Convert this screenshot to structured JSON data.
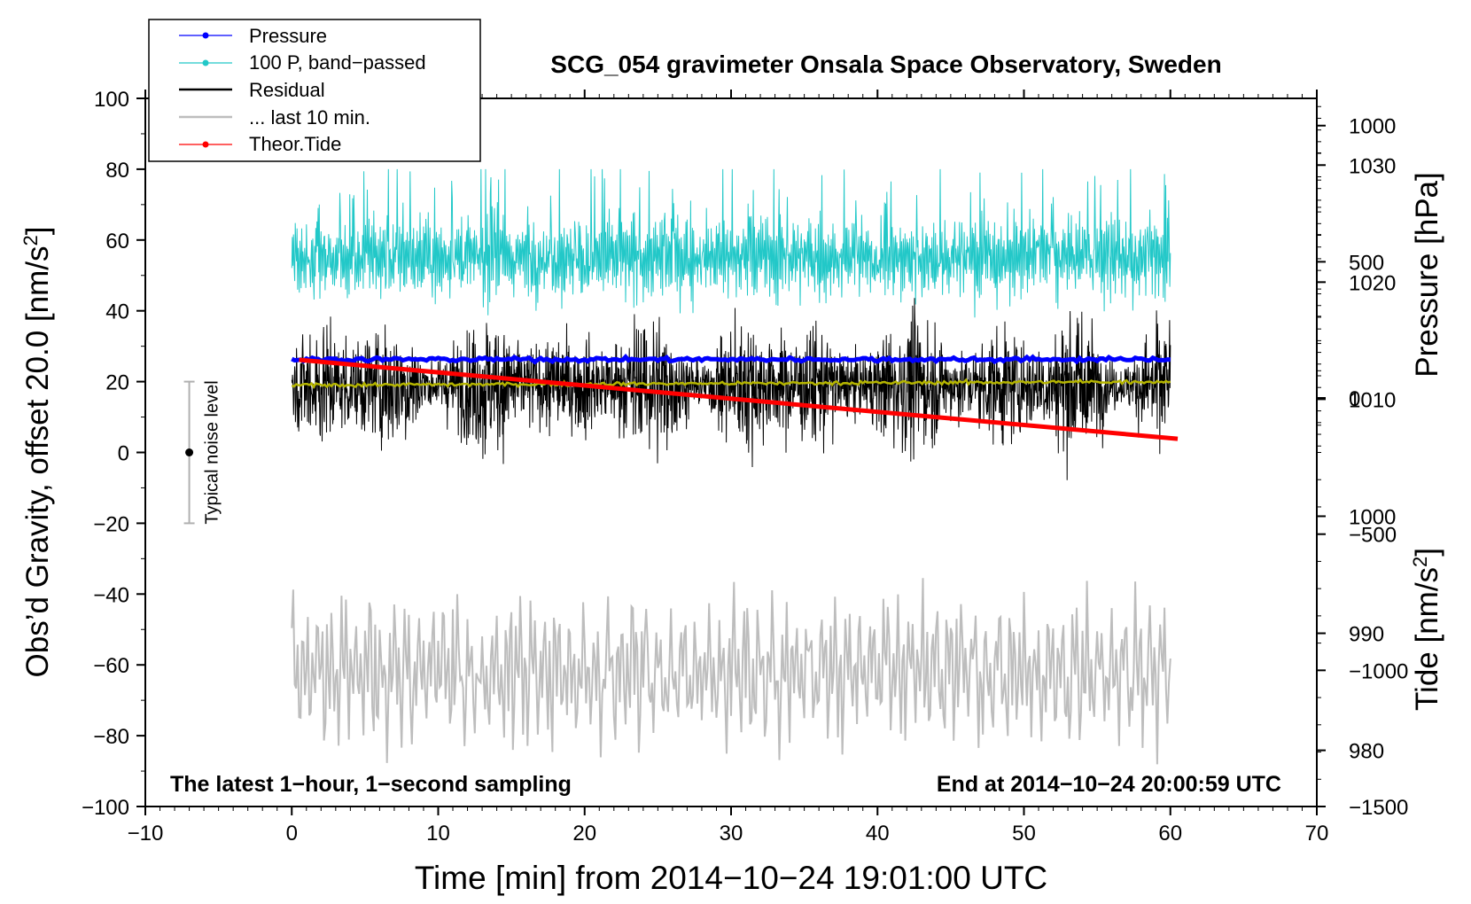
{
  "chart_data": {
    "type": "line",
    "title": "SCG_054 gravimeter Onsala Space Observatory, Sweden",
    "xlabel": "Time [min] from 2014−10−24 19:01:00 UTC",
    "ylabel_left_main": "Obs’d Gravity, offset 20.0 [nm/s",
    "ylabel_left_sup": "2",
    "ylabel_left_end": "]",
    "ylabel_right_top": "Pressure [hPa]",
    "ylabel_right_bottom_main": "Tide [nm/s",
    "ylabel_right_bottom_sup": "2",
    "ylabel_right_bottom_end": "]",
    "xlim": [
      -10,
      70
    ],
    "ylim": [
      -100,
      100
    ],
    "x_ticks": [
      -10,
      0,
      10,
      20,
      30,
      40,
      50,
      60,
      70
    ],
    "x_tick_labels": [
      "−10",
      "0",
      "10",
      "20",
      "30",
      "40",
      "50",
      "60",
      "70"
    ],
    "y_ticks": [
      -100,
      -80,
      -60,
      -40,
      -20,
      0,
      20,
      40,
      60,
      80,
      100
    ],
    "y_tick_labels": [
      "−100",
      "−80",
      "−60",
      "−40",
      "−20",
      "0",
      "20",
      "40",
      "60",
      "80",
      "100"
    ],
    "pressure_axis": {
      "range": [
        975.2,
        1035.7
      ],
      "ticks": [
        980,
        990,
        1000,
        1010,
        1020,
        1030
      ],
      "tick_labels": [
        "980",
        "990",
        "1000",
        "1010",
        "1020",
        "1030"
      ]
    },
    "tide_axis": {
      "range": [
        -1500,
        1100
      ],
      "ticks": [
        -1500,
        -1000,
        -500,
        0,
        500,
        1000
      ],
      "tick_labels": [
        "−1500",
        "−1000",
        "−500",
        "0",
        "500",
        "1000"
      ]
    },
    "legend": {
      "position": "top-left",
      "entries": [
        {
          "label": "Pressure",
          "color": "#0000ff",
          "marker": true
        },
        {
          "label": "100 P, band−passed",
          "color": "#22c8c8",
          "marker": true
        },
        {
          "label": "Residual",
          "color": "#000000",
          "marker": false
        },
        {
          "label": "... last 10 min.",
          "color": "#bdbdbd",
          "marker": false
        },
        {
          "label": "Theor.Tide",
          "color": "#ff0000",
          "marker": true
        }
      ]
    },
    "series": [
      {
        "name": "Pressure",
        "axis": "pressure",
        "x_range": [
          0,
          60
        ],
        "value_hpa": 1013.4,
        "color": "#0000ff"
      },
      {
        "name": "100 P, band-passed",
        "axis": "left",
        "x_range": [
          0,
          60
        ],
        "mean": 55,
        "min": 38,
        "max": 80,
        "color": "#22c8c8"
      },
      {
        "name": "Residual",
        "axis": "left",
        "x_range": [
          0,
          60
        ],
        "mean": 19,
        "min": -18,
        "max": 50,
        "color": "#000000"
      },
      {
        "name": "Residual smoothed",
        "axis": "left",
        "x_range": [
          0,
          60
        ],
        "values_start_end": [
          19,
          20
        ],
        "color": "#b5b500"
      },
      {
        "name": "... last 10 min.",
        "axis": "left",
        "x_range": [
          0,
          60
        ],
        "mean": -62,
        "min": -90,
        "max": -32,
        "color": "#bdbdbd"
      },
      {
        "name": "Theor.Tide",
        "axis": "tide",
        "x": [
          0.5,
          60.5
        ],
        "y": [
          140,
          -150
        ],
        "color": "#ff0000"
      }
    ],
    "noise_indicator": {
      "label": "Typical noise level",
      "x": -7,
      "center": 0,
      "low": -20,
      "high": 20
    },
    "annotations": {
      "bottom_left": "The latest 1−hour, 1−second sampling",
      "bottom_right": "End at 2014−10−24 20:00:59 UTC"
    }
  }
}
